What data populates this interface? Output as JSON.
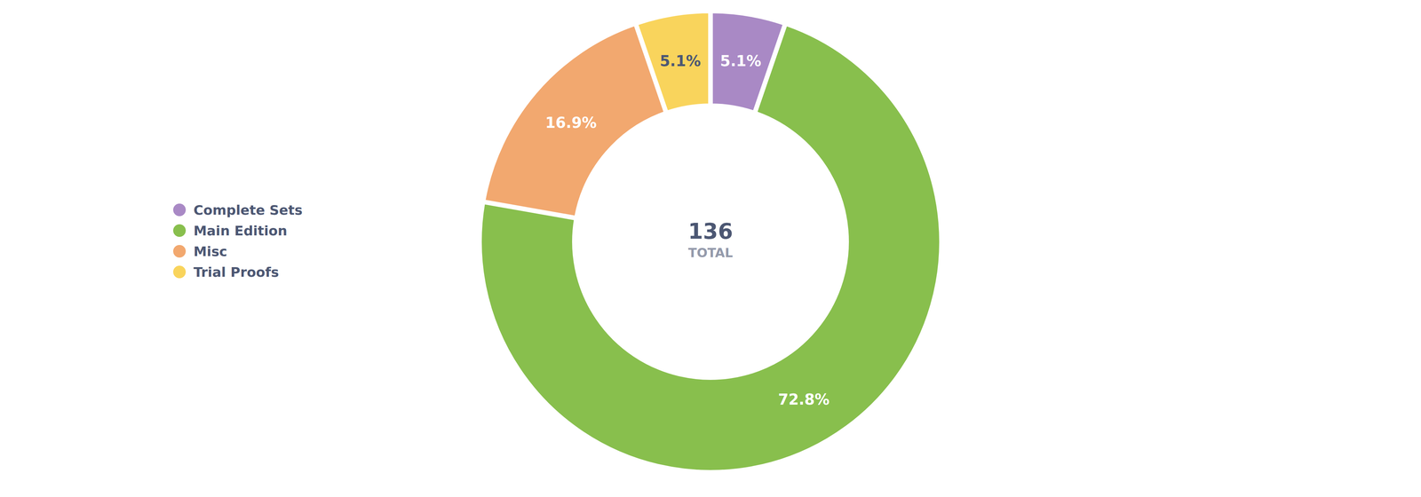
{
  "chart_data": {
    "type": "pie",
    "categories": [
      "Complete Sets",
      "Main Edition",
      "Misc",
      "Trial Proofs"
    ],
    "values": [
      5.1,
      72.8,
      16.9,
      5.1
    ],
    "value_labels": [
      "5.1%",
      "72.8%",
      "16.9%",
      "5.1%"
    ],
    "colors": [
      "#a989c5",
      "#88bf4d",
      "#f2a86f",
      "#f9d45c"
    ],
    "data_labels": true,
    "legend": "left",
    "total": 136,
    "total_label": "TOTAL"
  }
}
